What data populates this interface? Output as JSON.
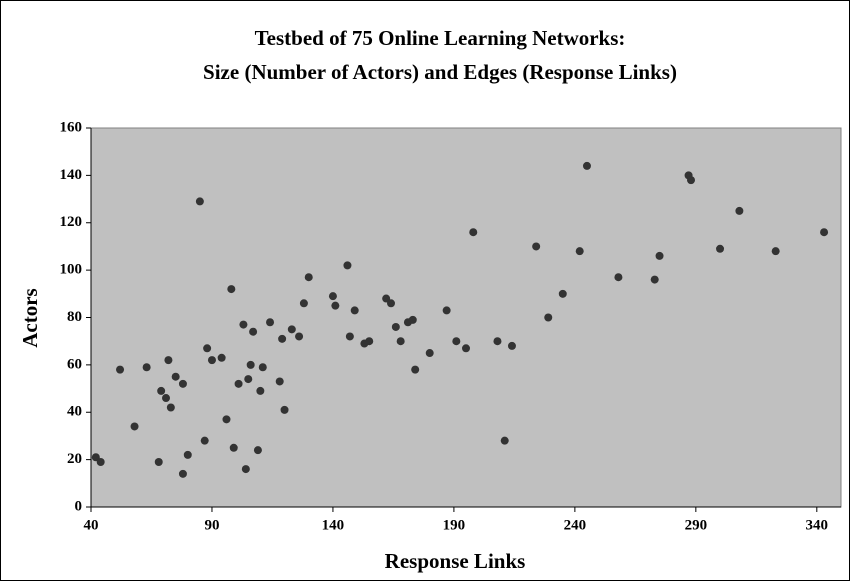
{
  "chart_data": {
    "type": "scatter",
    "title": [
      "Testbed of 75 Online Learning Networks:",
      "Size (Number of Actors) and Edges (Response Links)"
    ],
    "x_label": "Response Links",
    "y_label": "Actors",
    "xlim": [
      40,
      350
    ],
    "ylim": [
      0,
      160
    ],
    "xticks": [
      40,
      90,
      140,
      190,
      240,
      290,
      340
    ],
    "yticks": [
      0,
      20,
      40,
      60,
      80,
      100,
      120,
      140,
      160
    ],
    "color": "#333333",
    "plot_background": "#c0c0c0",
    "series": [
      {
        "name": "Networks",
        "color": "#333333",
        "x": [
          42,
          44,
          52,
          58,
          63,
          68,
          69,
          71,
          72,
          73,
          75,
          78,
          78,
          80,
          85,
          87,
          88,
          90,
          94,
          96,
          98,
          99,
          101,
          103,
          104,
          105,
          106,
          107,
          109,
          110,
          111,
          114,
          118,
          119,
          120,
          123,
          126,
          128,
          130,
          140,
          141,
          146,
          147,
          149,
          153,
          155,
          162,
          164,
          166,
          168,
          171,
          173,
          174,
          180,
          187,
          191,
          195,
          198,
          208,
          211,
          214,
          224,
          229,
          235,
          242,
          245,
          258,
          273,
          275,
          287,
          288,
          300,
          308,
          323,
          343
        ],
        "values": [
          21,
          19,
          58,
          34,
          59,
          19,
          49,
          46,
          62,
          42,
          55,
          52,
          14,
          22,
          129,
          28,
          67,
          62,
          63,
          37,
          92,
          25,
          52,
          77,
          16,
          54,
          60,
          74,
          24,
          49,
          59,
          78,
          53,
          71,
          41,
          75,
          72,
          86,
          97,
          89,
          85,
          102,
          72,
          83,
          69,
          70,
          88,
          86,
          76,
          70,
          78,
          79,
          58,
          65,
          83,
          70,
          67,
          116,
          70,
          28,
          68,
          110,
          80,
          90,
          108,
          144,
          97,
          96,
          106,
          140,
          138,
          109,
          125,
          108,
          116
        ]
      }
    ]
  }
}
